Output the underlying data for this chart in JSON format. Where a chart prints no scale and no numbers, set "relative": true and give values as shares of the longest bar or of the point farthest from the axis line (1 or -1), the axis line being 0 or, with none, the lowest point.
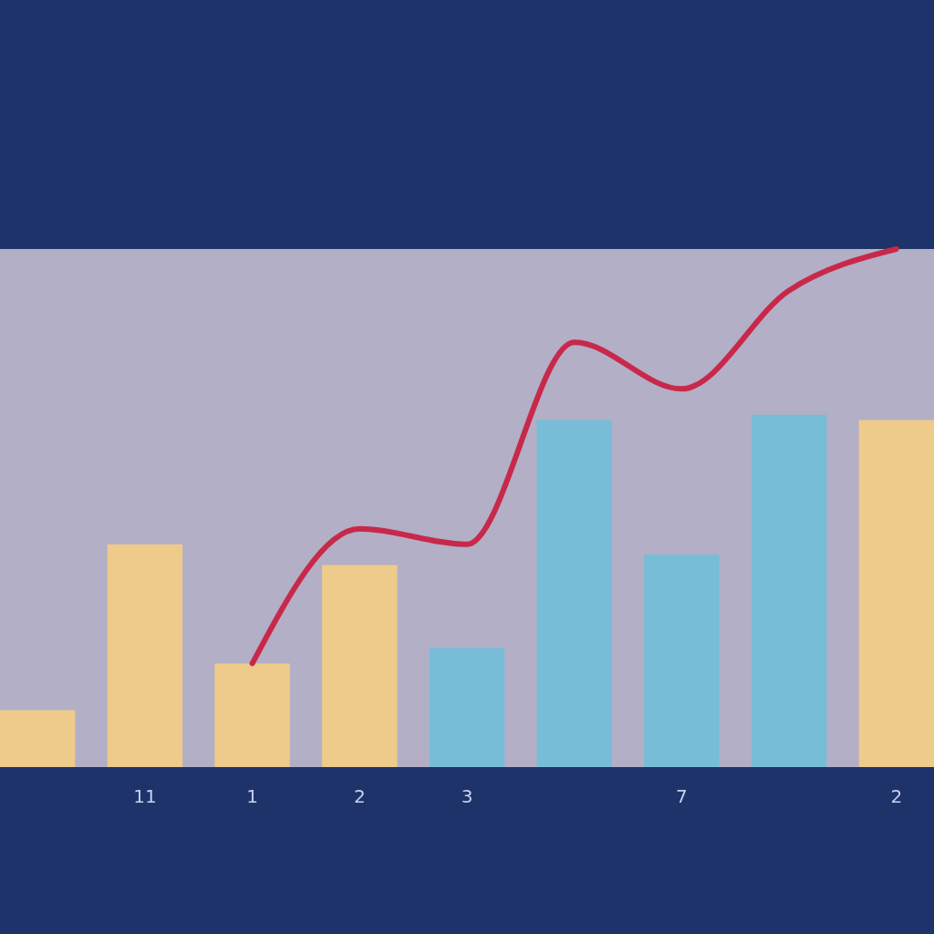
{
  "chart_data": {
    "type": "bar",
    "relative": true,
    "categories": [
      null,
      "11",
      "1",
      "2",
      "3",
      null,
      "7",
      null,
      "2"
    ],
    "series": [
      {
        "colors": [
          "#eecb8b",
          "#eecb8b",
          "#eecb8b",
          "#eecb8b",
          "#77bdd8",
          "#77bdd8",
          "#77bdd8",
          "#77bdd8",
          "#eecb8b"
        ],
        "values": [
          0.11,
          0.43,
          0.2,
          0.39,
          0.23,
          0.67,
          0.41,
          0.68,
          0.67
        ]
      },
      {
        "type": "line",
        "color": "#c8294a",
        "values": [
          null,
          null,
          0.2,
          0.46,
          0.43,
          0.82,
          0.73,
          0.92,
          1.0
        ]
      }
    ]
  }
}
